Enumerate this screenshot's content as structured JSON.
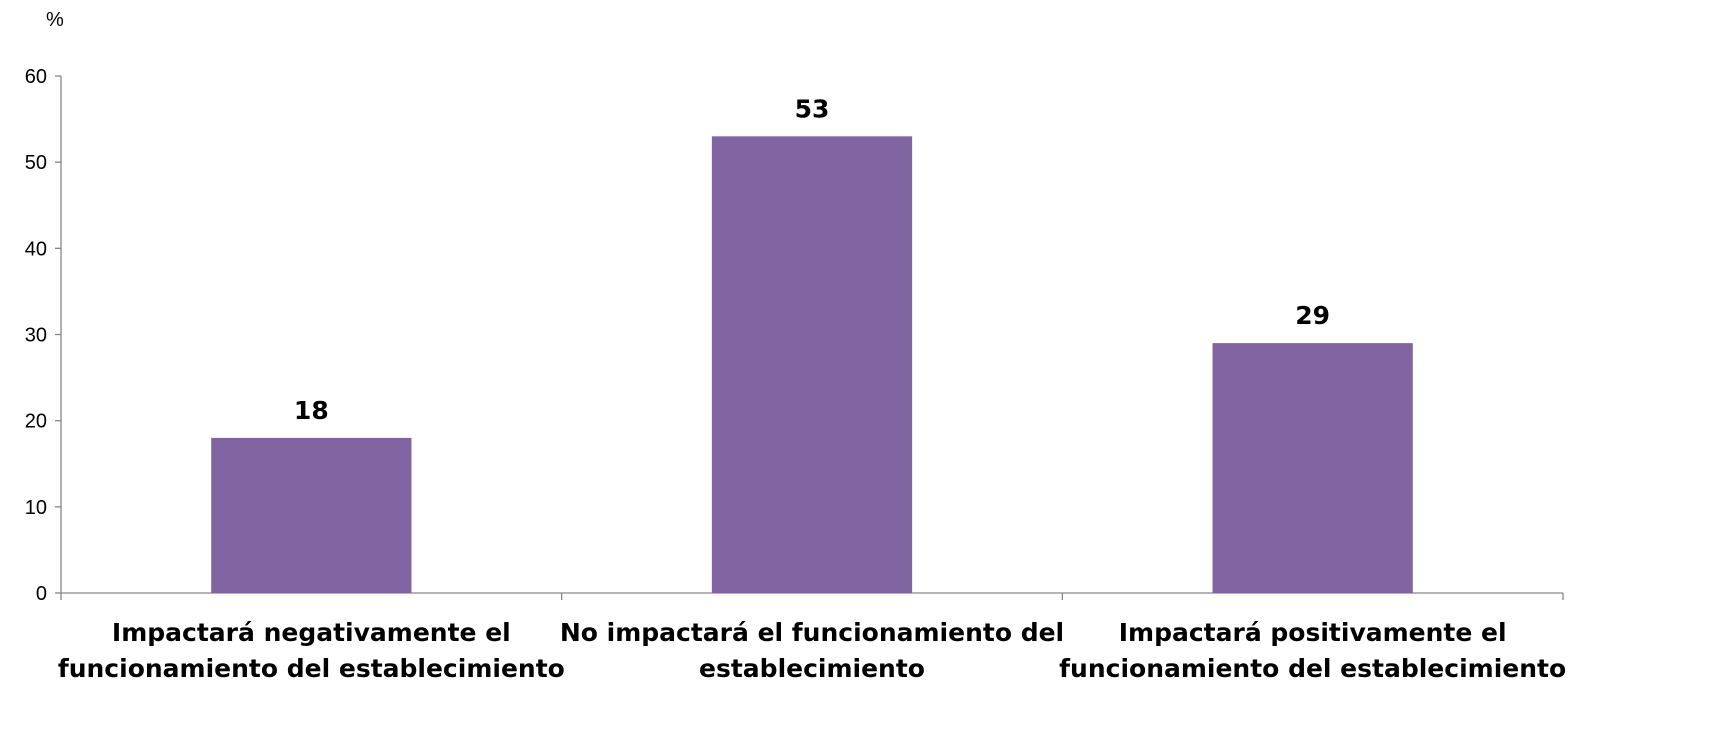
{
  "chart_data": {
    "type": "bar",
    "title": "",
    "xlabel": "",
    "ylabel": "%",
    "ylim": [
      0,
      60
    ],
    "yticks": [
      0,
      10,
      20,
      30,
      40,
      50,
      60
    ],
    "grid": false,
    "legend": "none",
    "bar_color": "#8064a2",
    "categories": [
      [
        "Impactará negativamente el",
        "funcionamiento del establecimiento"
      ],
      [
        "No impactará el funcionamiento del",
        "establecimiento"
      ],
      [
        "Impactará positivamente el",
        "funcionamiento del establecimiento"
      ]
    ],
    "values": [
      18,
      53,
      29
    ],
    "data_labels": [
      "18",
      "53",
      "29"
    ]
  }
}
